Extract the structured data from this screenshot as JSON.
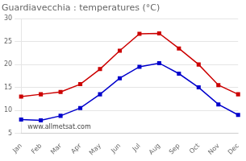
{
  "chart_data": {
    "type": "line",
    "title": "Guardiavecchia : temperatures (°C)",
    "categories": [
      "Jan",
      "Feb",
      "Mar",
      "Apr",
      "May",
      "Jun",
      "Jul",
      "Aug",
      "Sep",
      "Oct",
      "Nov",
      "Dec"
    ],
    "series": [
      {
        "color": "#cc0000",
        "marker": "square",
        "values": [
          13.0,
          13.5,
          14.0,
          15.7,
          19.0,
          23.0,
          26.7,
          26.8,
          23.5,
          20.0,
          15.5,
          13.5
        ]
      },
      {
        "color": "#0000cc",
        "marker": "square",
        "values": [
          8.0,
          7.8,
          8.8,
          10.5,
          13.5,
          17.0,
          19.5,
          20.3,
          18.0,
          15.0,
          11.3,
          9.0
        ]
      }
    ],
    "ylim": [
      5,
      30
    ],
    "yticks": [
      5,
      10,
      15,
      20,
      25,
      30
    ],
    "grid": "y",
    "annotations": [
      "www.allmetsat.com"
    ]
  }
}
